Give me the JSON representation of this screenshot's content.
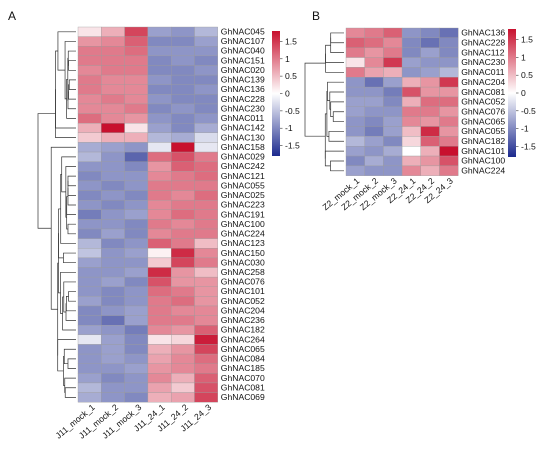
{
  "chart_data": [
    {
      "type": "heatmap",
      "panel_label": "A",
      "columns": [
        "J11_mock_1",
        "J11_mock_2",
        "J11_mock_3",
        "J11_24_1",
        "J11_24_2",
        "J11_24_3"
      ],
      "rows": [
        "GhNAC045",
        "GhNAC107",
        "GhNAC040",
        "GhNAC151",
        "GhNAC020",
        "GhNAC139",
        "GhNAC136",
        "GhNAC228",
        "GhNAC230",
        "GhNAC011",
        "GhNAC142",
        "GhNAC130",
        "GhNAC158",
        "GhNAC029",
        "GhNAC242",
        "GhNAC121",
        "GhNAC055",
        "GhNAC025",
        "GhNAC223",
        "GhNAC191",
        "GhNAC100",
        "GhNAC224",
        "GhNAC123",
        "GhNAC150",
        "GhNAC030",
        "GhNAC258",
        "GhNAC076",
        "GhNAC101",
        "GhNAC052",
        "GhNAC204",
        "GhNAC236",
        "GhNAC182",
        "GhNAC264",
        "GhNAC065",
        "GhNAC084",
        "GhNAC185",
        "GhNAC070",
        "GhNAC081",
        "GhNAC069"
      ],
      "values": [
        [
          0.2,
          0.6,
          1.4,
          -0.8,
          -0.9,
          -0.6
        ],
        [
          0.8,
          0.9,
          1.2,
          -1.0,
          -1.0,
          -0.8
        ],
        [
          1.0,
          1.0,
          1.1,
          -0.9,
          -0.9,
          -0.9
        ],
        [
          1.0,
          1.0,
          1.0,
          -1.0,
          -0.9,
          -1.0
        ],
        [
          0.9,
          1.0,
          1.0,
          -1.0,
          -1.0,
          -0.9
        ],
        [
          1.0,
          0.9,
          0.9,
          -0.9,
          -1.0,
          -1.0
        ],
        [
          1.0,
          0.9,
          0.9,
          -1.0,
          -1.0,
          -0.9
        ],
        [
          0.9,
          1.0,
          0.9,
          -0.9,
          -1.0,
          -1.0
        ],
        [
          0.9,
          0.9,
          1.0,
          -1.0,
          -0.9,
          -1.0
        ],
        [
          1.1,
          0.9,
          0.8,
          -0.9,
          -1.0,
          -0.9
        ],
        [
          0.6,
          1.8,
          0.2,
          -0.8,
          -1.0,
          -0.7
        ],
        [
          0.4,
          0.6,
          0.6,
          -0.6,
          -0.7,
          -0.3
        ],
        [
          -0.7,
          -0.8,
          -0.9,
          -0.2,
          1.8,
          -0.2
        ],
        [
          -0.6,
          -0.9,
          -1.3,
          1.1,
          1.3,
          1.0
        ],
        [
          -0.9,
          -0.9,
          -1.0,
          0.8,
          1.2,
          1.1
        ],
        [
          -1.0,
          -0.9,
          -0.9,
          0.9,
          1.0,
          1.1
        ],
        [
          -0.9,
          -1.0,
          -0.9,
          1.0,
          1.0,
          1.0
        ],
        [
          -1.0,
          -0.9,
          -1.0,
          1.0,
          0.9,
          1.1
        ],
        [
          -0.9,
          -1.0,
          -0.9,
          0.9,
          1.0,
          1.0
        ],
        [
          -1.1,
          -0.9,
          -0.8,
          0.9,
          1.1,
          1.0
        ],
        [
          -0.9,
          -0.9,
          -1.0,
          1.0,
          0.9,
          1.0
        ],
        [
          -1.0,
          -0.8,
          -1.0,
          0.9,
          1.0,
          1.0
        ],
        [
          -0.6,
          -1.0,
          -0.9,
          1.2,
          1.0,
          0.5
        ],
        [
          -0.5,
          -0.9,
          -0.8,
          0.1,
          1.6,
          0.9
        ],
        [
          -0.8,
          -0.9,
          -0.9,
          0.4,
          1.4,
          1.0
        ],
        [
          -0.9,
          -0.9,
          -0.8,
          1.6,
          0.8,
          0.5
        ],
        [
          -0.9,
          -0.8,
          -1.0,
          1.3,
          0.8,
          0.8
        ],
        [
          -0.9,
          -1.0,
          -0.9,
          1.1,
          1.0,
          0.8
        ],
        [
          -0.8,
          -1.0,
          -0.9,
          1.0,
          1.1,
          0.8
        ],
        [
          -1.0,
          -0.9,
          -0.8,
          1.0,
          0.9,
          0.9
        ],
        [
          -1.0,
          -1.2,
          -0.8,
          1.0,
          1.0,
          0.9
        ],
        [
          -0.8,
          -0.9,
          -1.1,
          0.9,
          0.8,
          1.2
        ],
        [
          -0.2,
          -0.8,
          -1.0,
          0.2,
          0.3,
          1.7
        ],
        [
          -0.9,
          -0.8,
          -1.0,
          0.6,
          0.8,
          1.4
        ],
        [
          -0.9,
          -0.8,
          -0.9,
          0.7,
          0.9,
          1.1
        ],
        [
          -0.9,
          -0.9,
          -0.8,
          0.8,
          0.9,
          1.0
        ],
        [
          -0.8,
          -1.0,
          -0.9,
          0.9,
          0.6,
          1.2
        ],
        [
          -0.6,
          -0.9,
          -0.9,
          0.7,
          0.4,
          1.3
        ],
        [
          -0.7,
          -0.9,
          -1.0,
          0.6,
          0.7,
          1.4
        ]
      ],
      "colorbar_ticks": [
        "1.5",
        "1",
        "0.5",
        "0",
        "-0.5",
        "-1",
        "-1.5"
      ],
      "value_range": [
        -1.8,
        1.8
      ],
      "colors": {
        "low": "#1c2a8e",
        "mid": "#ffffff",
        "high": "#c8102e"
      }
    },
    {
      "type": "heatmap",
      "panel_label": "B",
      "columns": [
        "Z2_mock_1",
        "Z2_mock_2",
        "Z2_mock_3",
        "Z2_24_1",
        "Z2_24_2",
        "Z2_24_3"
      ],
      "rows": [
        "GhNAC136",
        "GhNAC228",
        "GhNAC112",
        "GhNAC230",
        "GhNAC011",
        "GhNAC204",
        "GhNAC081",
        "GhNAC052",
        "GhNAC076",
        "GhNAC065",
        "GhNAC055",
        "GhNAC182",
        "GhNAC101",
        "GhNAC100",
        "GhNAC224"
      ],
      "values": [
        [
          0.9,
          1.0,
          1.2,
          -0.9,
          -1.0,
          -1.2
        ],
        [
          1.2,
          1.1,
          0.9,
          -1.0,
          -1.2,
          -1.0
        ],
        [
          1.0,
          0.8,
          1.0,
          -1.0,
          -0.8,
          -1.0
        ],
        [
          0.2,
          0.9,
          1.5,
          -0.8,
          -0.9,
          -0.9
        ],
        [
          1.0,
          0.7,
          0.6,
          -0.9,
          -0.8,
          -0.6
        ],
        [
          -0.9,
          -1.2,
          -0.8,
          0.6,
          0.8,
          1.5
        ],
        [
          -0.9,
          -0.9,
          -1.1,
          1.3,
          0.8,
          0.8
        ],
        [
          -0.8,
          -0.8,
          -1.0,
          0.6,
          1.1,
          1.1
        ],
        [
          -0.8,
          -0.9,
          -0.9,
          1.0,
          1.0,
          0.8
        ],
        [
          -0.9,
          -1.0,
          -0.8,
          0.9,
          0.8,
          1.0
        ],
        [
          -0.9,
          -1.1,
          -0.8,
          0.5,
          1.6,
          0.8
        ],
        [
          -0.6,
          -0.8,
          -1.0,
          0.3,
          1.2,
          1.0
        ],
        [
          -0.8,
          -0.9,
          -0.7,
          0.0,
          0.6,
          1.8
        ],
        [
          -1.0,
          -0.7,
          -0.9,
          0.6,
          0.8,
          1.3
        ],
        [
          -0.8,
          -0.9,
          -0.9,
          0.9,
          0.6,
          1.0
        ]
      ],
      "colorbar_ticks": [
        "1.5",
        "1",
        "0.5",
        "0",
        "-0.5",
        "-1",
        "-1.5"
      ],
      "value_range": [
        -1.8,
        1.8
      ],
      "colors": {
        "low": "#1c2a8e",
        "mid": "#ffffff",
        "high": "#c8102e"
      }
    }
  ]
}
